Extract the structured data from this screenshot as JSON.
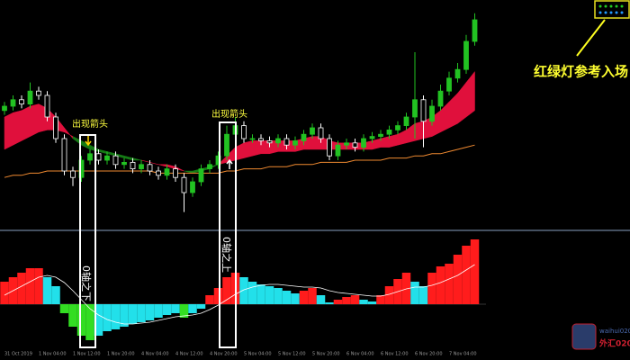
{
  "chart_data": {
    "type": "candlestick",
    "categories": [
      "31 Oct 2019",
      null,
      null,
      null,
      "1 Nov 04:00",
      null,
      null,
      null,
      "1 Nov 12:00",
      null,
      null,
      null,
      "1 Nov 20:00",
      null,
      null,
      null,
      "4 Nov 04:00",
      null,
      null,
      null,
      "4 Nov 12:00",
      null,
      null,
      null,
      "4 Nov 20:00",
      null,
      null,
      null,
      "5 Nov 04:00",
      null,
      null,
      null,
      "5 Nov 12:00",
      null,
      null,
      null,
      "5 Nov 20:00",
      null,
      null,
      null,
      "6 Nov 04:00",
      null,
      null,
      null,
      "6 Nov 12:00",
      null,
      null,
      null,
      "6 Nov 20:00",
      null,
      null,
      null,
      "7 Nov 04:00",
      null,
      null,
      null
    ],
    "open": [
      53,
      55,
      58,
      56,
      62,
      60,
      50,
      40,
      25,
      22,
      30,
      33,
      30,
      32,
      28,
      29,
      26,
      28,
      25,
      23,
      26,
      22,
      15,
      20,
      26,
      28,
      32,
      42,
      46,
      40,
      40,
      39,
      38,
      40,
      37,
      39,
      42,
      45,
      40,
      32,
      37,
      38,
      36,
      40,
      41,
      42,
      44,
      46,
      50,
      58,
      48,
      55,
      62,
      68,
      72,
      85
    ],
    "high": [
      57,
      60,
      60,
      66,
      64,
      62,
      52,
      42,
      27,
      32,
      35,
      35,
      34,
      34,
      31,
      31,
      30,
      30,
      27,
      28,
      28,
      24,
      22,
      28,
      30,
      34,
      46,
      50,
      48,
      42,
      42,
      41,
      42,
      42,
      41,
      44,
      47,
      47,
      42,
      39,
      40,
      40,
      42,
      43,
      44,
      46,
      48,
      52,
      80,
      60,
      58,
      65,
      71,
      75,
      88,
      98
    ],
    "low": [
      51,
      53,
      54,
      54,
      58,
      48,
      38,
      23,
      18,
      20,
      28,
      28,
      28,
      26,
      26,
      24,
      24,
      23,
      21,
      21,
      20,
      6,
      13,
      18,
      24,
      26,
      30,
      40,
      38,
      38,
      37,
      36,
      36,
      35,
      35,
      37,
      40,
      38,
      30,
      30,
      35,
      34,
      34,
      38,
      39,
      40,
      42,
      44,
      40,
      36,
      46,
      53,
      60,
      66,
      70,
      83
    ],
    "close": [
      55,
      58,
      56,
      62,
      60,
      50,
      40,
      25,
      22,
      30,
      33,
      30,
      32,
      28,
      29,
      26,
      28,
      25,
      23,
      26,
      22,
      15,
      20,
      26,
      28,
      32,
      42,
      46,
      40,
      40,
      39,
      38,
      40,
      37,
      39,
      42,
      45,
      40,
      32,
      37,
      38,
      36,
      40,
      41,
      42,
      44,
      46,
      50,
      58,
      48,
      55,
      62,
      68,
      72,
      85,
      95
    ],
    "up_color": "#22c222",
    "down_color": "#ffffff",
    "ylim": [
      0,
      100
    ],
    "ribbon_top": [
      50,
      52,
      53,
      55,
      56,
      54,
      50,
      45,
      40,
      37,
      35,
      34,
      33,
      32,
      31,
      30,
      30,
      29,
      28,
      28,
      27,
      25,
      24,
      25,
      26,
      28,
      32,
      36,
      38,
      39,
      39,
      39,
      39,
      39,
      39,
      40,
      41,
      41,
      39,
      38,
      38,
      38,
      38,
      39,
      40,
      41,
      42,
      44,
      47,
      48,
      50,
      53,
      57,
      61,
      66,
      71
    ],
    "ribbon_bottom": [
      35,
      37,
      39,
      41,
      43,
      44,
      44,
      43,
      41,
      39,
      37,
      35,
      34,
      33,
      32,
      31,
      30,
      29,
      28,
      27,
      26,
      25,
      25,
      26,
      27,
      28,
      29,
      30,
      31,
      32,
      33,
      33,
      34,
      34,
      34,
      35,
      35,
      35,
      35,
      35,
      35,
      35,
      35,
      35,
      36,
      36,
      37,
      38,
      39,
      40,
      41,
      43,
      45,
      47,
      50,
      53
    ],
    "ribbon_up_color": "#e0103c",
    "ribbon_down_color": "#157a15",
    "ma": [
      22,
      23,
      23,
      24,
      24,
      25,
      25,
      25,
      25,
      25,
      25,
      25,
      25,
      25,
      25,
      25,
      25,
      25,
      24,
      24,
      24,
      24,
      24,
      24,
      24,
      24,
      25,
      25,
      26,
      26,
      26,
      27,
      27,
      27,
      28,
      28,
      28,
      29,
      29,
      29,
      29,
      30,
      30,
      30,
      30,
      31,
      31,
      31,
      32,
      32,
      33,
      33,
      34,
      35,
      36,
      37
    ],
    "ma_color": "#f08a30",
    "histogram": [
      25,
      30,
      35,
      40,
      40,
      30,
      20,
      -10,
      -25,
      -35,
      -40,
      -35,
      -30,
      -28,
      -25,
      -22,
      -20,
      -18,
      -15,
      -12,
      -10,
      -15,
      -10,
      -5,
      10,
      18,
      30,
      35,
      30,
      25,
      22,
      20,
      18,
      15,
      12,
      15,
      18,
      10,
      2,
      5,
      8,
      10,
      5,
      3,
      10,
      20,
      28,
      35,
      25,
      20,
      35,
      42,
      45,
      55,
      65,
      72
    ],
    "signal": [
      10,
      15,
      20,
      25,
      30,
      32,
      30,
      24,
      15,
      5,
      -5,
      -12,
      -17,
      -20,
      -22,
      -22,
      -21,
      -20,
      -18,
      -16,
      -14,
      -13,
      -12,
      -10,
      -6,
      -1,
      5,
      11,
      16,
      19,
      21,
      22,
      22,
      21,
      20,
      19,
      19,
      18,
      15,
      13,
      12,
      11,
      10,
      9,
      9,
      11,
      14,
      17,
      19,
      19,
      21,
      24,
      28,
      32,
      38,
      44
    ],
    "hist_rise_pos_color": "#ff1c1c",
    "hist_fall_pos_color": "#22e0ea",
    "hist_fall_neg_color": "#33dd22",
    "hist_rise_neg_color": "#22e0ea",
    "y2lim": [
      -47,
      80
    ],
    "annotations": [
      "出现箭头",
      "出现箭头",
      "0轴之下",
      "0轴之上",
      "红绿灯参考入场"
    ],
    "watermark": [
      "waihui020",
      "外汇020"
    ]
  }
}
